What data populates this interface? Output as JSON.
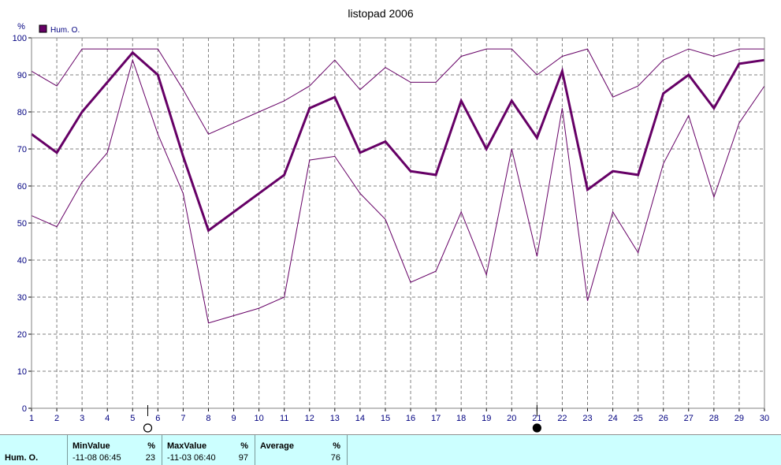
{
  "colors": {
    "series": "#660066",
    "axis_text": "#000080",
    "grid": "#808080",
    "stats_bg": "#ccffff"
  },
  "chart_data": {
    "type": "line",
    "title": "listopad 2006",
    "ylabel": "%",
    "xlabel": "",
    "ylim": [
      0,
      100
    ],
    "xlim": [
      1,
      30
    ],
    "yticks": [
      0,
      10,
      20,
      30,
      40,
      50,
      60,
      70,
      80,
      90,
      100
    ],
    "xticks": [
      1,
      2,
      3,
      4,
      5,
      6,
      7,
      8,
      9,
      10,
      11,
      12,
      13,
      14,
      15,
      16,
      17,
      18,
      19,
      20,
      21,
      22,
      23,
      24,
      25,
      26,
      27,
      28,
      29,
      30
    ],
    "grid": true,
    "legend_position": "top-left",
    "legend": [
      "Hum. O."
    ],
    "x": [
      1,
      2,
      3,
      4,
      5,
      6,
      7,
      8,
      9,
      10,
      11,
      12,
      13,
      14,
      15,
      16,
      17,
      18,
      19,
      20,
      21,
      22,
      23,
      24,
      25,
      26,
      27,
      28,
      29,
      30
    ],
    "series": [
      {
        "name": "Hum. O.",
        "role": "average",
        "values": [
          74,
          69,
          80,
          88,
          96,
          90,
          68,
          48,
          53,
          58,
          63,
          81,
          84,
          69,
          72,
          64,
          63,
          83,
          70,
          83,
          73,
          91,
          59,
          64,
          63,
          85,
          90,
          81,
          93,
          94
        ]
      },
      {
        "role": "maximum",
        "values": [
          91,
          87,
          97,
          97,
          97,
          97,
          86,
          74,
          77,
          80,
          83,
          87,
          94,
          86,
          92,
          88,
          88,
          95,
          97,
          97,
          90,
          95,
          97,
          84,
          87,
          94,
          97,
          95,
          97,
          97
        ]
      },
      {
        "role": "minimum",
        "values": [
          52,
          49,
          61,
          69,
          94,
          74,
          58,
          23,
          25,
          27,
          30,
          67,
          68,
          58,
          51,
          34,
          37,
          53,
          36,
          70,
          41,
          81,
          29,
          53,
          42,
          66,
          79,
          57,
          77,
          87
        ]
      }
    ],
    "moon_phases": [
      {
        "x": 5.6,
        "phase": "full"
      },
      {
        "x": 21,
        "phase": "new"
      }
    ]
  },
  "stats": {
    "row_label": "Hum. O.",
    "min": {
      "header": "MinValue",
      "unit": "%",
      "time": "-11-08  06:45",
      "value": "23"
    },
    "max": {
      "header": "MaxValue",
      "unit": "%",
      "time": "-11-03  06:40",
      "value": "97"
    },
    "avg": {
      "header": "Average",
      "unit": "%",
      "value": "76"
    }
  }
}
